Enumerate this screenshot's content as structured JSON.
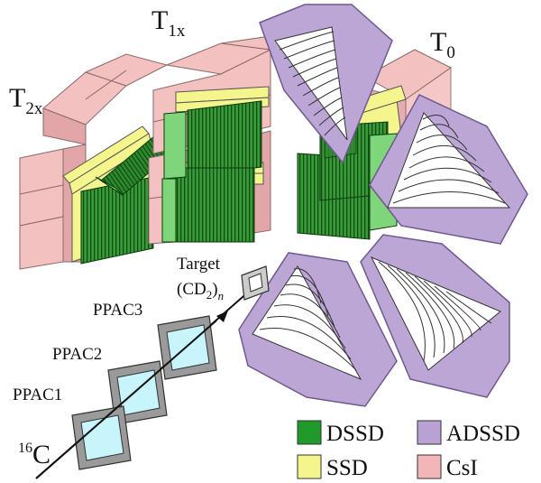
{
  "labels": {
    "t2x": {
      "main": "T",
      "sub": "2x"
    },
    "t1x": {
      "main": "T",
      "sub": "1x"
    },
    "t0": {
      "main": "T",
      "sub": "0"
    },
    "target_line1": "Target",
    "target_line2": {
      "pre": "(CD",
      "sub": "2",
      "post": ")",
      "sub2": "n"
    },
    "ppac3": "PPAC3",
    "ppac2": "PPAC2",
    "ppac1": "PPAC1",
    "beam": {
      "sup": "16",
      "main": "C"
    }
  },
  "legend": [
    {
      "key": "dssd",
      "label": "DSSD",
      "color": "#1f9a2b"
    },
    {
      "key": "adssd",
      "label": "ADSSD",
      "color": "#b9a2d3"
    },
    {
      "key": "ssd",
      "label": "SSD",
      "color": "#f4f58d"
    },
    {
      "key": "csi",
      "label": "CsI",
      "color": "#f2b6b8"
    }
  ],
  "colors": {
    "csi": "#f4c1c1",
    "csi_dark": "#e2a6a8",
    "csi_edge": "#8a6a6a",
    "ssd": "#f4f58d",
    "dssd": "#2e8b2e",
    "dssd_light": "#7fd67a",
    "adssd": "#bba6d6",
    "adssd_edge": "#6e5a8e",
    "ppac_frame": "#9a9a9a",
    "ppac_window": "#c8f4fb"
  }
}
